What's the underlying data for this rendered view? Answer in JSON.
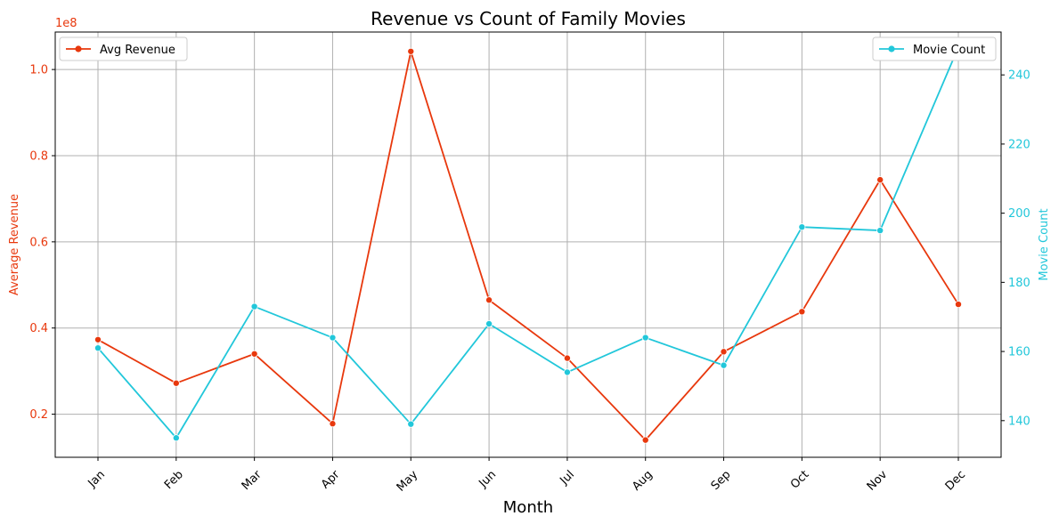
{
  "chart_data": {
    "type": "line",
    "title": "Revenue vs Count of Family Movies",
    "xlabel": "Month",
    "categories": [
      "Jan",
      "Feb",
      "Mar",
      "Apr",
      "May",
      "Jun",
      "Jul",
      "Aug",
      "Sep",
      "Oct",
      "Nov",
      "Dec"
    ],
    "grid": true,
    "left_axis": {
      "label": "Average Revenue",
      "ylim": [
        0.1,
        1.087
      ],
      "ticks": [
        0.2,
        0.4,
        0.6,
        0.8,
        1.0
      ],
      "tick_labels": [
        "0.2",
        "0.4",
        "0.6",
        "0.8",
        "1.0"
      ],
      "offset_text": "1e8",
      "color": "#e8380d"
    },
    "right_axis": {
      "label": "Movie Count",
      "ylim": [
        129.4,
        252.4
      ],
      "ticks": [
        140,
        160,
        180,
        200,
        220,
        240
      ],
      "tick_labels": [
        "140",
        "160",
        "180",
        "200",
        "220",
        "240"
      ],
      "color": "#22c7da"
    },
    "series": [
      {
        "name": "Avg Revenue",
        "axis": "left",
        "color": "#e8380d",
        "values": [
          0.373,
          0.272,
          0.34,
          0.178,
          1.042,
          0.465,
          0.33,
          0.14,
          0.345,
          0.438,
          0.744,
          0.455
        ]
      },
      {
        "name": "Movie Count",
        "axis": "right",
        "color": "#22c7da",
        "values": [
          161,
          135,
          173,
          164,
          139,
          168,
          154,
          164,
          156,
          196,
          195,
          248
        ]
      }
    ],
    "legend": [
      {
        "name": "Avg Revenue",
        "placement": "upper-left"
      },
      {
        "name": "Movie Count",
        "placement": "upper-right"
      }
    ]
  }
}
